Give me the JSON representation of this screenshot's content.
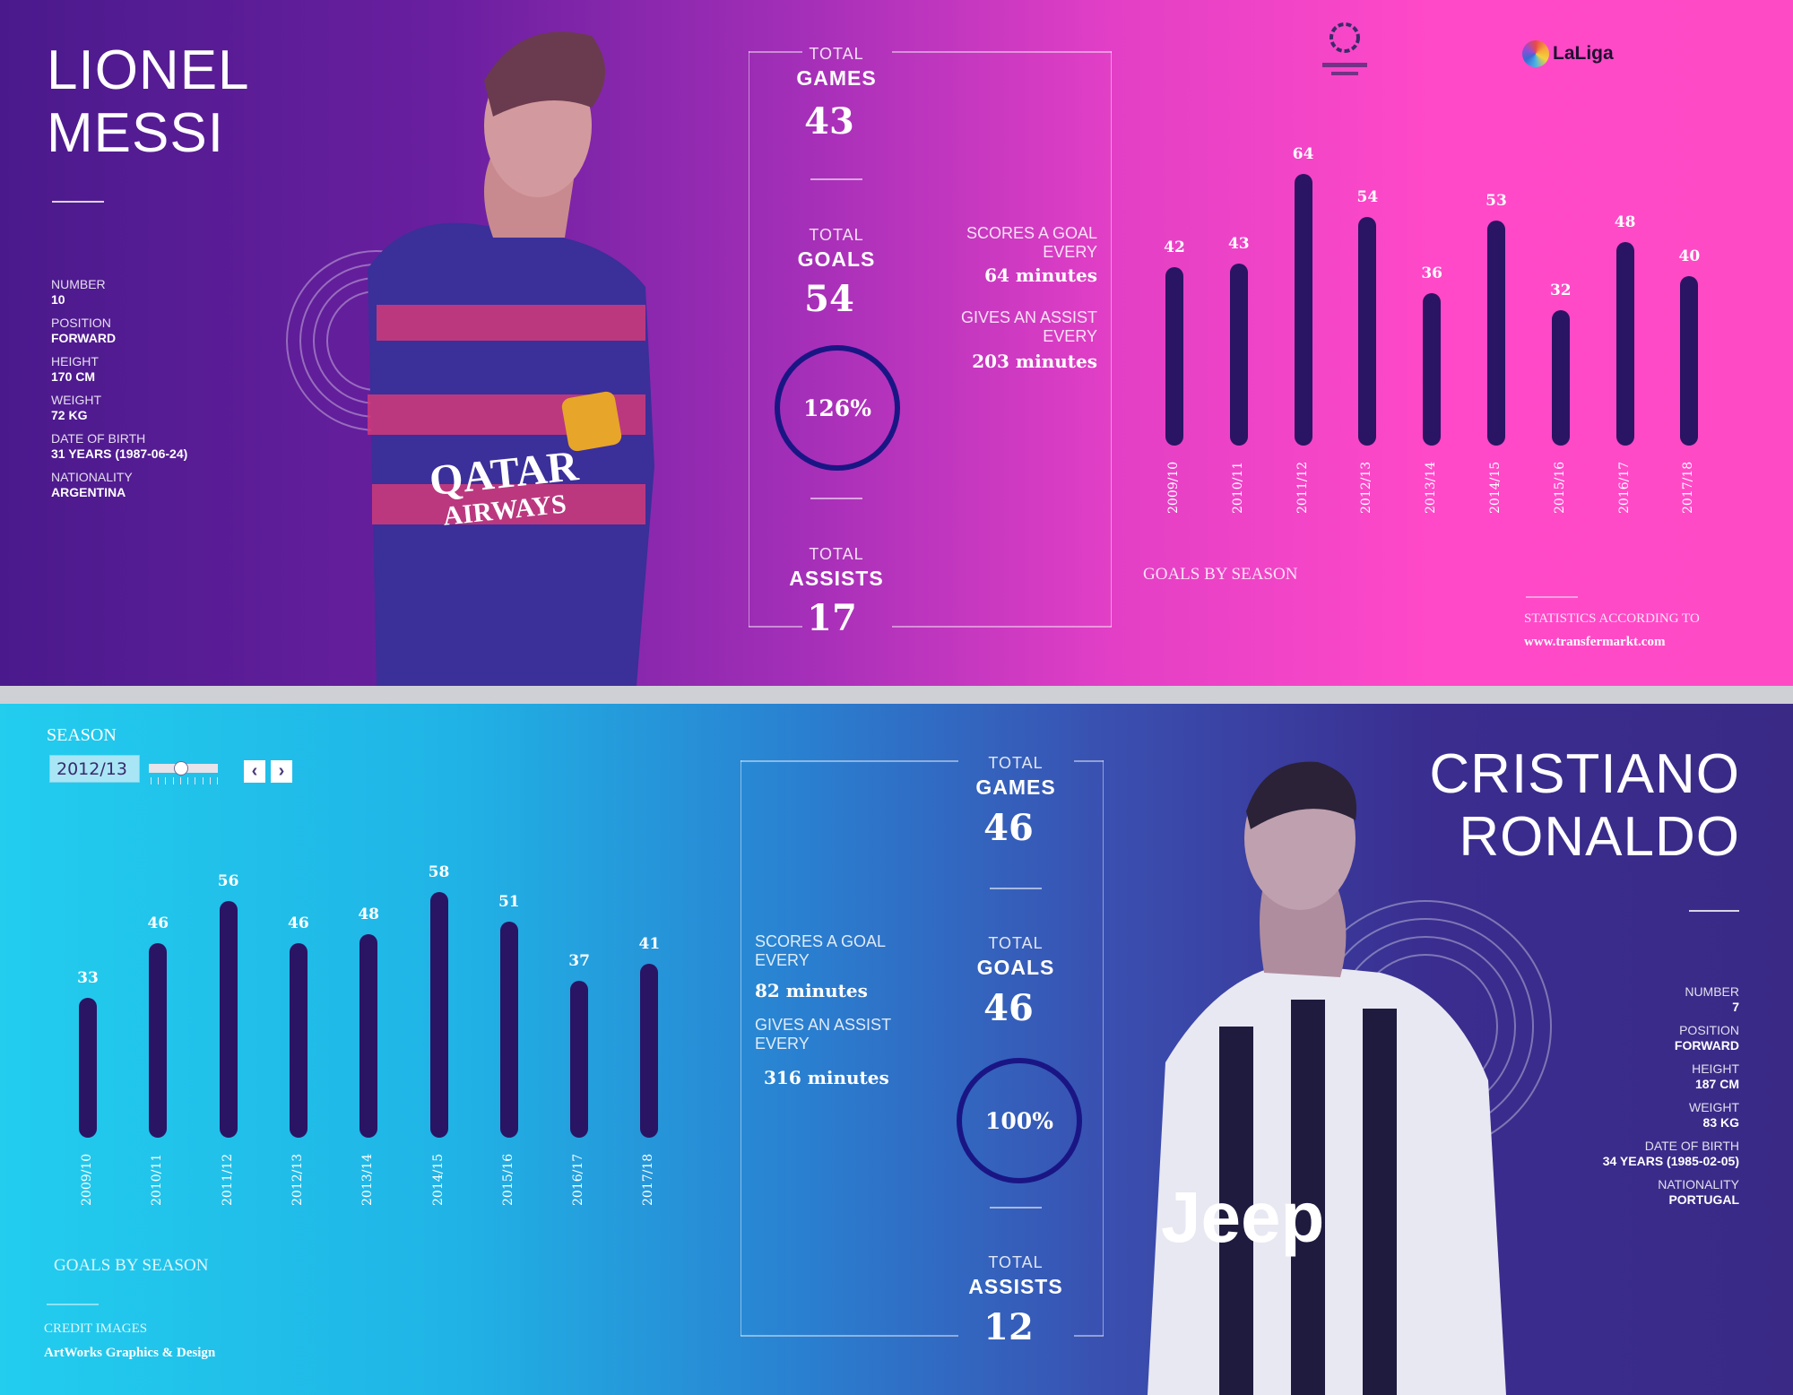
{
  "messi": {
    "first_name": "LIONEL",
    "last_name": "MESSI",
    "info": [
      {
        "label": "NUMBER",
        "value": "10"
      },
      {
        "label": "POSITION",
        "value": "FORWARD"
      },
      {
        "label": "HEIGHT",
        "value": "170 CM"
      },
      {
        "label": "WEIGHT",
        "value": "72 KG"
      },
      {
        "label": "DATE OF BIRTH",
        "value": "31 YEARS (1987-06-24)"
      },
      {
        "label": "NATIONALITY",
        "value": "ARGENTINA"
      }
    ],
    "games_label_1": "TOTAL",
    "games_label_2": "GAMES",
    "games": "43",
    "goals_label_1": "TOTAL",
    "goals_label_2": "GOALS",
    "goals": "54",
    "ratio": "126%",
    "assists_label_1": "TOTAL",
    "assists_label_2": "ASSISTS",
    "assists": "17",
    "goal_every_label": "SCORES A GOAL EVERY",
    "goal_every": "64 minutes",
    "assist_every_label": "GIVES AN ASSIST EVERY",
    "assist_every": "203 minutes",
    "chart_title": "GOALS BY SEASON",
    "logos": [
      "UEFA Champions League",
      "LaLiga"
    ],
    "source_label": "STATISTICS ACCORDING TO",
    "source_url": "www.transfermarkt.com",
    "jersey_text": [
      "QATAR",
      "AIRWAYS"
    ]
  },
  "ronaldo": {
    "first_name": "CRISTIANO",
    "last_name": "RONALDO",
    "info": [
      {
        "label": "NUMBER",
        "value": "7"
      },
      {
        "label": "POSITION",
        "value": "FORWARD"
      },
      {
        "label": "HEIGHT",
        "value": "187 CM"
      },
      {
        "label": "WEIGHT",
        "value": "83 KG"
      },
      {
        "label": "DATE OF BIRTH",
        "value": "34 YEARS (1985-02-05)"
      },
      {
        "label": "NATIONALITY",
        "value": "PORTUGAL"
      }
    ],
    "games_label_1": "TOTAL",
    "games_label_2": "GAMES",
    "games": "46",
    "goals_label_1": "TOTAL",
    "goals_label_2": "GOALS",
    "goals": "46",
    "ratio": "100%",
    "assists_label_1": "TOTAL",
    "assists_label_2": "ASSISTS",
    "assists": "12",
    "goal_every_label": "SCORES A GOAL EVERY",
    "goal_every": "82 minutes",
    "assist_every_label": "GIVES AN ASSIST EVERY",
    "assist_every": "316 minutes",
    "chart_title": "GOALS BY SEASON",
    "credit_label": "CREDIT IMAGES",
    "credit": "ArtWorks Graphics & Design",
    "jersey_text": "Jeep"
  },
  "season_control": {
    "label": "SEASON",
    "value": "2012/13",
    "slider_position": 3,
    "slider_steps": 9
  },
  "colors": {
    "messi_bg": "#ff49c8",
    "ronaldo_bg": "#22cdee",
    "bar": "#2a1464",
    "ring": "#1a1585"
  },
  "chart_data": [
    {
      "type": "bar",
      "title": "GOALS BY SEASON",
      "categories": [
        "2009/10",
        "2010/11",
        "2011/12",
        "2012/13",
        "2013/14",
        "2014/15",
        "2015/16",
        "2016/17",
        "2017/18"
      ],
      "values": [
        42,
        43,
        64,
        54,
        36,
        53,
        32,
        48,
        40
      ]
    },
    {
      "type": "bar",
      "title": "GOALS BY SEASON",
      "categories": [
        "2009/10",
        "2010/11",
        "2011/12",
        "2012/13",
        "2013/14",
        "2014/15",
        "2015/16",
        "2016/17",
        "2017/18"
      ],
      "values": [
        33,
        46,
        56,
        46,
        48,
        58,
        51,
        37,
        41
      ]
    }
  ]
}
